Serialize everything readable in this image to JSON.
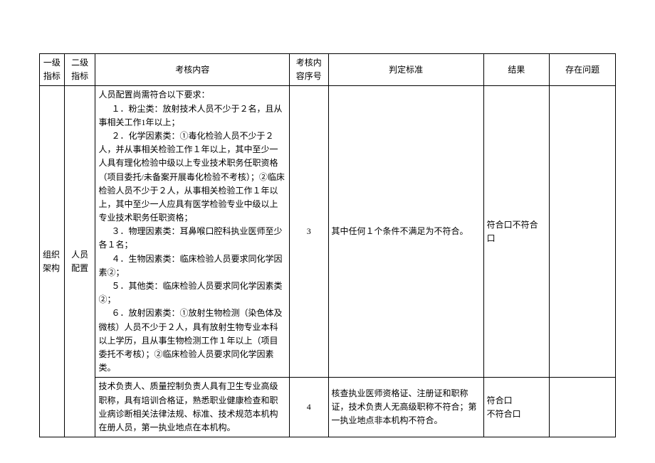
{
  "headers": {
    "col1": "一级指标",
    "col2": "二级指标",
    "col3": "考核内容",
    "col4": "考核内容序号",
    "col5": "判定标准",
    "col6": "结果",
    "col7": "存在问题"
  },
  "merged": {
    "col1": "组织架构",
    "col2": "人员配置"
  },
  "row1": {
    "content_intro": "人员配置尚需符合以下要求：",
    "content_1": "１．粉尘类：放射技术人员不少于２名，且从事相关工作1年以上；",
    "content_2": "２．化学因素类：①毒化检验人员不少于２人，并从事相关检验工作１年以上，其中至少一人具有理化检验中级以上专业技术职务任职资格（项目委托/未备案开展毒化检验不考核）；②临床检验人员不少于２人，从事相关检验工作１年以上，其中至少一人应具有医学检验专业中级以上专业技术职务任职资格；",
    "content_3": "３．物理因素类：耳鼻喉口腔科执业医师至少各１名；",
    "content_4": "４．生物因素类：临床检验人员要求同化学因素②；",
    "content_5": "５．其他类：临床检验人员要求同化学因素类②；",
    "content_6": "６．放射因素类：①放射生物检测（染色体及微核）人员不少于２人，具有放射生物专业本科以上学历，且从事生物检测工作１年以上（项目委托不考核）；②临床检验人员要求同化学因素类。",
    "seq": "3",
    "criteria": "其中任何１个条件不满足为不符合。",
    "result": "符合口不符合口"
  },
  "row2": {
    "content": "技术负责人、质量控制负责人具有卫生专业高级职称，具有培训合格证，熟悉职业健康检查和职业病诊断相关法律法规、标准、技术规范本机构在册人员，第一执业地点在本机构。",
    "seq": "4",
    "criteria": "核查执业医师资格证、注册证和职称证，技术负责人无高级职称不符合；第一执业地点非本机构不符合。",
    "result_line1": "符合口",
    "result_line2": "不符合口"
  }
}
